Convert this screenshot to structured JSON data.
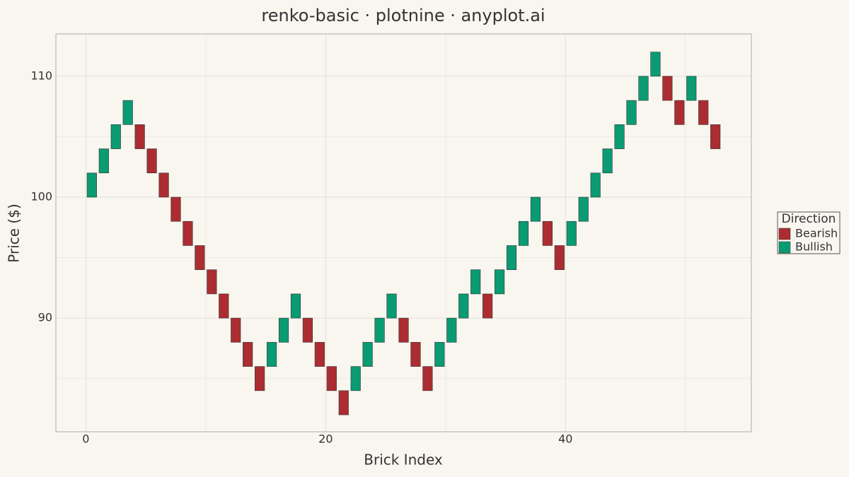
{
  "chart_data": {
    "type": "renko",
    "title": "renko-basic · plotnine · anyplot.ai",
    "x_label": "Brick Index",
    "y_label": "Price ($)",
    "legend_title": "Direction",
    "series": [
      {
        "name": "Bearish",
        "color": "#ab2d31"
      },
      {
        "name": "Bullish",
        "color": "#0a9b72"
      }
    ],
    "bricks": [
      {
        "x": 0,
        "open": 100,
        "close": 102
      },
      {
        "x": 1,
        "open": 102,
        "close": 104
      },
      {
        "x": 2,
        "open": 104,
        "close": 106
      },
      {
        "x": 3,
        "open": 106,
        "close": 108
      },
      {
        "x": 4,
        "open": 106,
        "close": 104
      },
      {
        "x": 5,
        "open": 104,
        "close": 102
      },
      {
        "x": 6,
        "open": 102,
        "close": 100
      },
      {
        "x": 7,
        "open": 100,
        "close": 98
      },
      {
        "x": 8,
        "open": 98,
        "close": 96
      },
      {
        "x": 9,
        "open": 96,
        "close": 94
      },
      {
        "x": 10,
        "open": 94,
        "close": 92
      },
      {
        "x": 11,
        "open": 92,
        "close": 90
      },
      {
        "x": 12,
        "open": 90,
        "close": 88
      },
      {
        "x": 13,
        "open": 88,
        "close": 86
      },
      {
        "x": 14,
        "open": 86,
        "close": 84
      },
      {
        "x": 15,
        "open": 86,
        "close": 88
      },
      {
        "x": 16,
        "open": 88,
        "close": 90
      },
      {
        "x": 17,
        "open": 90,
        "close": 92
      },
      {
        "x": 18,
        "open": 90,
        "close": 88
      },
      {
        "x": 19,
        "open": 88,
        "close": 86
      },
      {
        "x": 20,
        "open": 86,
        "close": 84
      },
      {
        "x": 21,
        "open": 84,
        "close": 82
      },
      {
        "x": 22,
        "open": 84,
        "close": 86
      },
      {
        "x": 23,
        "open": 86,
        "close": 88
      },
      {
        "x": 24,
        "open": 88,
        "close": 90
      },
      {
        "x": 25,
        "open": 90,
        "close": 92
      },
      {
        "x": 26,
        "open": 90,
        "close": 88
      },
      {
        "x": 27,
        "open": 88,
        "close": 86
      },
      {
        "x": 28,
        "open": 86,
        "close": 84
      },
      {
        "x": 29,
        "open": 86,
        "close": 88
      },
      {
        "x": 30,
        "open": 88,
        "close": 90
      },
      {
        "x": 31,
        "open": 90,
        "close": 92
      },
      {
        "x": 32,
        "open": 92,
        "close": 94
      },
      {
        "x": 33,
        "open": 92,
        "close": 90
      },
      {
        "x": 34,
        "open": 92,
        "close": 94
      },
      {
        "x": 35,
        "open": 94,
        "close": 96
      },
      {
        "x": 36,
        "open": 96,
        "close": 98
      },
      {
        "x": 37,
        "open": 98,
        "close": 100
      },
      {
        "x": 38,
        "open": 98,
        "close": 96
      },
      {
        "x": 39,
        "open": 96,
        "close": 94
      },
      {
        "x": 40,
        "open": 96,
        "close": 98
      },
      {
        "x": 41,
        "open": 98,
        "close": 100
      },
      {
        "x": 42,
        "open": 100,
        "close": 102
      },
      {
        "x": 43,
        "open": 102,
        "close": 104
      },
      {
        "x": 44,
        "open": 104,
        "close": 106
      },
      {
        "x": 45,
        "open": 106,
        "close": 108
      },
      {
        "x": 46,
        "open": 108,
        "close": 110
      },
      {
        "x": 47,
        "open": 110,
        "close": 112
      },
      {
        "x": 48,
        "open": 110,
        "close": 108
      },
      {
        "x": 49,
        "open": 108,
        "close": 106
      },
      {
        "x": 50,
        "open": 108,
        "close": 110
      },
      {
        "x": 51,
        "open": 108,
        "close": 106
      },
      {
        "x": 52,
        "open": 106,
        "close": 104
      }
    ],
    "xlim": [
      -2.5,
      55.5
    ],
    "xticks": [
      0,
      20,
      40
    ],
    "xminorticks": [
      10,
      30,
      50
    ],
    "ylim": [
      80.6,
      113.5
    ],
    "yticks": [
      90,
      100,
      110
    ],
    "yminorticks": [
      85,
      95,
      105
    ],
    "grid": true
  }
}
